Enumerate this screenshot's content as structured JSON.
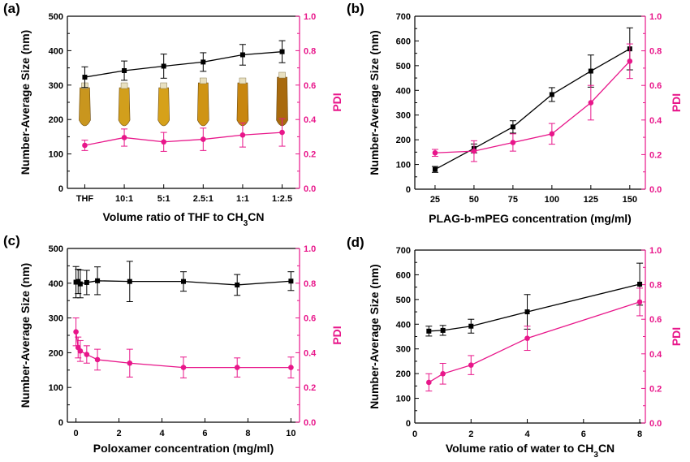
{
  "colors": {
    "size": "#000000",
    "pdi": "#e8168a"
  },
  "chart_data": [
    {
      "panel_label": "(a)",
      "type": "line",
      "categories": [
        "THF",
        "10:1",
        "5:1",
        "2.5:1",
        "1:1",
        "1:2.5"
      ],
      "xlabel": "Volume ratio of THF to CH3CN",
      "xlabel_main": "Volume ratio of THF to CH",
      "xlabel_sub": "3",
      "xlabel_tail": "CN",
      "ylabel": "Number-Average Size (nm)",
      "y2label": "PDI",
      "ylim": [
        0,
        500
      ],
      "yticks": [
        0,
        100,
        200,
        300,
        400,
        500
      ],
      "y2lim": [
        0,
        1.0
      ],
      "y2ticks": [
        0.0,
        0.2,
        0.4,
        0.6,
        0.8,
        1.0
      ],
      "has_vial_inset": true,
      "series": [
        {
          "axis": "left",
          "marker": "square",
          "values": [
            323,
            342,
            355,
            367,
            388,
            397
          ],
          "errors": [
            30,
            28,
            35,
            27,
            30,
            32
          ]
        },
        {
          "axis": "right",
          "marker": "circle",
          "values": [
            0.25,
            0.295,
            0.27,
            0.285,
            0.31,
            0.325
          ],
          "errors": [
            0.03,
            0.05,
            0.055,
            0.065,
            0.07,
            0.08
          ]
        }
      ]
    },
    {
      "panel_label": "(b)",
      "type": "line",
      "x": [
        25,
        50,
        75,
        100,
        125,
        150
      ],
      "xticks": [
        25,
        50,
        75,
        100,
        125,
        150
      ],
      "xlim": [
        12,
        160
      ],
      "xlabel": "PLAG-b-mPEG concentration (mg/ml)",
      "ylabel": "Number-Average Size (nm)",
      "y2label": "PDI",
      "ylim": [
        0,
        700
      ],
      "yticks": [
        0,
        100,
        200,
        300,
        400,
        500,
        600,
        700
      ],
      "y2lim": [
        0,
        1.0
      ],
      "y2ticks": [
        0.0,
        0.2,
        0.4,
        0.6,
        0.8,
        1.0
      ],
      "series": [
        {
          "axis": "left",
          "marker": "square",
          "values": [
            80,
            165,
            252,
            383,
            478,
            568
          ],
          "errors": [
            12,
            18,
            25,
            28,
            65,
            85
          ]
        },
        {
          "axis": "right",
          "marker": "circle",
          "values": [
            0.21,
            0.22,
            0.27,
            0.32,
            0.5,
            0.74
          ],
          "errors": [
            0.02,
            0.06,
            0.05,
            0.06,
            0.1,
            0.1
          ]
        }
      ]
    },
    {
      "panel_label": "(c)",
      "type": "line",
      "x": [
        0,
        0.1,
        0.2,
        0.5,
        1,
        2.5,
        5,
        7.5,
        10
      ],
      "xticks": [
        0,
        2,
        4,
        6,
        8,
        10
      ],
      "xlim": [
        -0.4,
        10.4
      ],
      "xlabel": "Poloxamer concentration (mg/ml)",
      "ylabel": "Number-Average Size (nm)",
      "y2label": "PDI",
      "ylim": [
        0,
        500
      ],
      "yticks": [
        0,
        100,
        200,
        300,
        400,
        500
      ],
      "y2lim": [
        0,
        1.0
      ],
      "y2ticks": [
        0.0,
        0.2,
        0.4,
        0.6,
        0.8,
        1.0
      ],
      "series": [
        {
          "axis": "left",
          "marker": "square",
          "values": [
            403,
            405,
            398,
            402,
            407,
            405,
            405,
            395,
            406
          ],
          "errors": [
            45,
            35,
            40,
            35,
            40,
            58,
            28,
            30,
            27
          ]
        },
        {
          "axis": "right",
          "marker": "circle",
          "values": [
            0.52,
            0.43,
            0.41,
            0.39,
            0.36,
            0.34,
            0.315,
            0.315,
            0.315
          ],
          "errors": [
            0.08,
            0.06,
            0.06,
            0.05,
            0.06,
            0.08,
            0.06,
            0.055,
            0.06
          ]
        }
      ]
    },
    {
      "panel_label": "(d)",
      "type": "line",
      "x": [
        0.5,
        1,
        2,
        4,
        8
      ],
      "xticks": [
        0,
        2,
        4,
        6,
        8
      ],
      "xlim": [
        0,
        8.2
      ],
      "xlabel": "Volume ratio of water to CH3CN",
      "xlabel_main": "Volume ratio of water to CH",
      "xlabel_sub": "3",
      "xlabel_tail": "CN",
      "ylabel": "Number-Average Size (nm)",
      "y2label": "PDI",
      "ylim": [
        0,
        700
      ],
      "yticks": [
        0,
        100,
        200,
        300,
        400,
        500,
        600,
        700
      ],
      "y2lim": [
        0,
        1.0
      ],
      "y2ticks": [
        0.0,
        0.2,
        0.4,
        0.6,
        0.8,
        1.0
      ],
      "series": [
        {
          "axis": "left",
          "marker": "square",
          "values": [
            372,
            375,
            392,
            450,
            562
          ],
          "errors": [
            20,
            20,
            28,
            70,
            85
          ]
        },
        {
          "axis": "right",
          "marker": "circle",
          "values": [
            0.235,
            0.285,
            0.335,
            0.49,
            0.7
          ],
          "errors": [
            0.05,
            0.06,
            0.055,
            0.07,
            0.08
          ]
        }
      ]
    }
  ]
}
